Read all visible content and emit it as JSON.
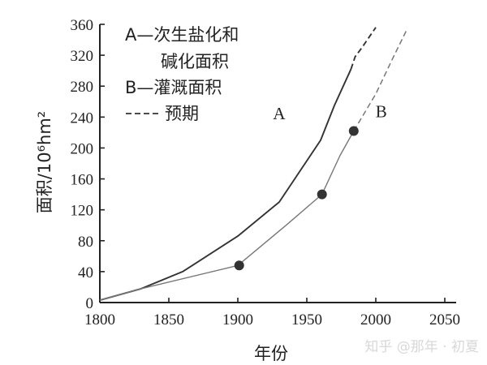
{
  "chart_data": {
    "type": "line",
    "xlim": [
      1800,
      2050
    ],
    "ylim": [
      0,
      360
    ],
    "xticks": [
      1800,
      1850,
      1900,
      1950,
      2000,
      2050
    ],
    "yticks": [
      0,
      40,
      80,
      120,
      160,
      200,
      240,
      280,
      320,
      360
    ],
    "xlabel": "年份",
    "ylabel": "面积/10⁶hm²",
    "legend": {
      "position": "top-left",
      "entries": [
        {
          "key": "A",
          "text_line1": "A—次生盐化和",
          "text_line2": "碱化面积"
        },
        {
          "key": "B",
          "text": "B—灌溉面积"
        },
        {
          "key": "forecast",
          "text": "预期"
        }
      ]
    },
    "series": [
      {
        "name": "A",
        "label": "A",
        "color": "#333333",
        "actual": [
          [
            1800,
            3
          ],
          [
            1830,
            18
          ],
          [
            1860,
            40
          ],
          [
            1900,
            86
          ],
          [
            1930,
            130
          ],
          [
            1945,
            170
          ],
          [
            1960,
            210
          ],
          [
            1970,
            255
          ],
          [
            1982,
            302
          ]
        ],
        "forecast": [
          [
            1982,
            302
          ],
          [
            1985,
            318
          ],
          [
            1990,
            330
          ],
          [
            2000,
            356
          ]
        ]
      },
      {
        "name": "B",
        "label": "B",
        "color": "#777777",
        "actual": [
          [
            1800,
            3
          ],
          [
            1830,
            18
          ],
          [
            1900,
            48
          ],
          [
            1935,
            100
          ],
          [
            1961,
            140
          ],
          [
            1974,
            190
          ],
          [
            1984,
            222
          ]
        ],
        "forecast": [
          [
            1984,
            222
          ],
          [
            2000,
            270
          ],
          [
            2012,
            315
          ],
          [
            2023,
            355
          ]
        ],
        "markers": [
          [
            1901,
            48
          ],
          [
            1961,
            140
          ],
          [
            1984,
            222
          ]
        ]
      }
    ],
    "annotations": [
      {
        "text": "A",
        "x": 1930,
        "y": 237
      },
      {
        "text": "B",
        "x": 2004,
        "y": 240
      }
    ]
  },
  "watermark": "知乎 @那年 · 初夏"
}
